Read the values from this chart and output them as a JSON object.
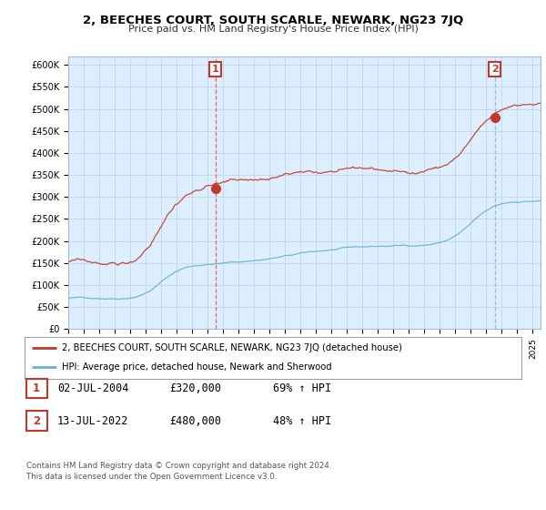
{
  "title": "2, BEECHES COURT, SOUTH SCARLE, NEWARK, NG23 7JQ",
  "subtitle": "Price paid vs. HM Land Registry's House Price Index (HPI)",
  "ylabel_ticks": [
    "£0",
    "£50K",
    "£100K",
    "£150K",
    "£200K",
    "£250K",
    "£300K",
    "£350K",
    "£400K",
    "£450K",
    "£500K",
    "£550K",
    "£600K"
  ],
  "ylim": [
    0,
    620000
  ],
  "xlim_start": 1995.0,
  "xlim_end": 2025.5,
  "sale1_date": 2004.5,
  "sale1_price": 320000,
  "sale2_date": 2022.54,
  "sale2_price": 480000,
  "hpi_color": "#6baed6",
  "price_color": "#c0392b",
  "vline1_color": "#e74c3c",
  "vline2_color": "#7fb3d3",
  "bg_color": "#ddeeff",
  "plot_bg": "#ddeeff",
  "legend_label_price": "2, BEECHES COURT, SOUTH SCARLE, NEWARK, NG23 7JQ (detached house)",
  "legend_label_hpi": "HPI: Average price, detached house, Newark and Sherwood",
  "table_row1": [
    "1",
    "02-JUL-2004",
    "£320,000",
    "69% ↑ HPI"
  ],
  "table_row2": [
    "2",
    "13-JUL-2022",
    "£480,000",
    "48% ↑ HPI"
  ],
  "footer": "Contains HM Land Registry data © Crown copyright and database right 2024.\nThis data is licensed under the Open Government Licence v3.0.",
  "background_color": "#ffffff",
  "grid_color": "#c0d0e0"
}
